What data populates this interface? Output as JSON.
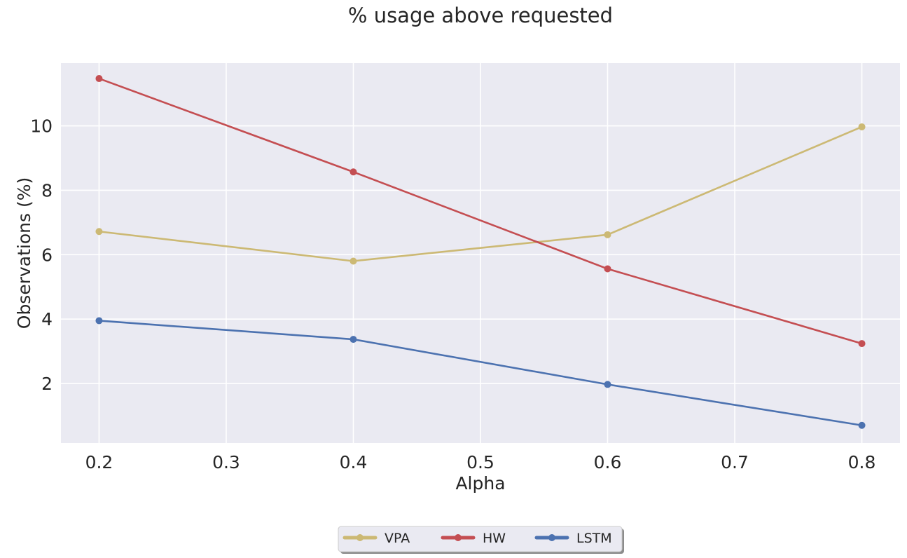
{
  "chart_data": {
    "type": "line",
    "title": "% usage above requested",
    "xlabel": "Alpha",
    "ylabel": "Observations (%)",
    "x": [
      0.2,
      0.4,
      0.6,
      0.8
    ],
    "xlim": [
      0.17,
      0.83
    ],
    "ylim": [
      0.15,
      11.95
    ],
    "xticks": [
      0.2,
      0.3,
      0.4,
      0.5,
      0.6,
      0.7,
      0.8
    ],
    "xtick_labels": [
      "0.2",
      "0.3",
      "0.4",
      "0.5",
      "0.6",
      "0.7",
      "0.8"
    ],
    "yticks": [
      2,
      4,
      6,
      8,
      10
    ],
    "ytick_labels": [
      "2",
      "4",
      "6",
      "8",
      "10"
    ],
    "grid": true,
    "legend_position": "bottom-center",
    "background_color": "#eaeaf2",
    "grid_color": "#ffffff",
    "series": [
      {
        "name": "VPA",
        "color": "#ccb974",
        "values": [
          6.72,
          5.8,
          6.62,
          9.97
        ]
      },
      {
        "name": "HW",
        "color": "#c44e52",
        "values": [
          11.47,
          8.57,
          5.56,
          3.24
        ]
      },
      {
        "name": "LSTM",
        "color": "#4c72b0",
        "values": [
          3.95,
          3.37,
          1.97,
          0.7
        ]
      }
    ]
  }
}
